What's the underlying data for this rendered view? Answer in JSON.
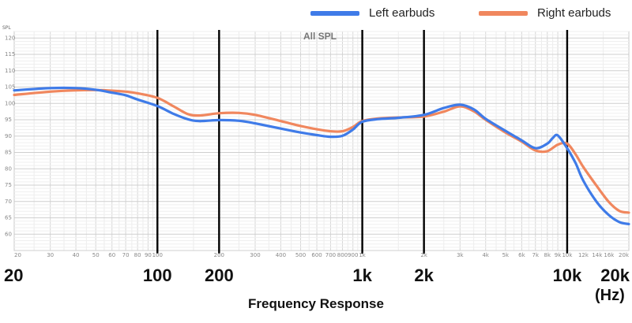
{
  "chart_data": {
    "type": "line",
    "title": "All SPL",
    "xlabel": "Frequency Response",
    "x_unit": "(Hz)",
    "ylabel": "SPL",
    "xscale": "log",
    "xlim": [
      20,
      20000
    ],
    "ylim": [
      55,
      122
    ],
    "grid": true,
    "legend_position": "top-right",
    "y_ticks": [
      120,
      115,
      110,
      105,
      100,
      95,
      90,
      85,
      80,
      75,
      70,
      65,
      60
    ],
    "minor_x_ticks": [
      {
        "v": 20,
        "label": "20"
      },
      {
        "v": 30,
        "label": "30"
      },
      {
        "v": 40,
        "label": "40"
      },
      {
        "v": 50,
        "label": "50"
      },
      {
        "v": 60,
        "label": "60"
      },
      {
        "v": 70,
        "label": "70"
      },
      {
        "v": 80,
        "label": "80"
      },
      {
        "v": 90,
        "label": "90"
      },
      {
        "v": 100,
        "label": "100"
      },
      {
        "v": 200,
        "label": "200"
      },
      {
        "v": 300,
        "label": "300"
      },
      {
        "v": 400,
        "label": "400"
      },
      {
        "v": 500,
        "label": "500"
      },
      {
        "v": 600,
        "label": "600"
      },
      {
        "v": 700,
        "label": "700"
      },
      {
        "v": 800,
        "label": "800"
      },
      {
        "v": 900,
        "label": "900"
      },
      {
        "v": 1000,
        "label": "1k"
      },
      {
        "v": 2000,
        "label": "2k"
      },
      {
        "v": 3000,
        "label": "3k"
      },
      {
        "v": 4000,
        "label": "4k"
      },
      {
        "v": 5000,
        "label": "5k"
      },
      {
        "v": 6000,
        "label": "6k"
      },
      {
        "v": 7000,
        "label": "7k"
      },
      {
        "v": 8000,
        "label": "8k"
      },
      {
        "v": 9000,
        "label": "9k"
      },
      {
        "v": 10000,
        "label": "10k"
      },
      {
        "v": 12000,
        "label": "12k"
      },
      {
        "v": 14000,
        "label": "14k"
      },
      {
        "v": 16000,
        "label": "16k"
      },
      {
        "v": 20000,
        "label": "20k"
      }
    ],
    "major_x_ticks": [
      {
        "v": 20,
        "label": "20"
      },
      {
        "v": 100,
        "label": "100"
      },
      {
        "v": 200,
        "label": "200"
      },
      {
        "v": 1000,
        "label": "1k"
      },
      {
        "v": 2000,
        "label": "2k"
      },
      {
        "v": 10000,
        "label": "10k"
      },
      {
        "v": 20000,
        "label": "20k"
      }
    ],
    "vertical_lines": [
      100,
      200,
      1000,
      2000,
      10000
    ],
    "series": [
      {
        "name": "Left earbuds",
        "color": "#3f7be8",
        "x": [
          20,
          30,
          40,
          50,
          60,
          70,
          80,
          100,
          120,
          140,
          160,
          200,
          250,
          300,
          400,
          500,
          600,
          700,
          800,
          900,
          1000,
          1200,
          1500,
          2000,
          2500,
          3000,
          3500,
          4000,
          5000,
          6000,
          7000,
          8000,
          8500,
          9000,
          10000,
          11000,
          12000,
          14000,
          16000,
          18000,
          20000
        ],
        "y": [
          104.0,
          104.7,
          104.7,
          104.2,
          103.3,
          102.5,
          101.2,
          99.2,
          96.8,
          95.2,
          94.6,
          94.9,
          94.7,
          93.9,
          92.3,
          91.1,
          90.3,
          89.8,
          90.1,
          92.0,
          94.4,
          95.2,
          95.6,
          96.5,
          98.6,
          99.6,
          98.2,
          95.3,
          91.6,
          88.7,
          86.3,
          87.7,
          89.4,
          90.2,
          86.3,
          81.7,
          76.3,
          69.7,
          65.8,
          63.7,
          63.1
        ]
      },
      {
        "name": "Right earbuds",
        "color": "#f0875e",
        "x": [
          20,
          30,
          40,
          50,
          60,
          70,
          80,
          100,
          120,
          140,
          160,
          200,
          250,
          300,
          400,
          500,
          600,
          700,
          800,
          900,
          1000,
          1200,
          1500,
          2000,
          2500,
          3000,
          3500,
          4000,
          5000,
          6000,
          7000,
          8000,
          9000,
          10000,
          11000,
          12000,
          14000,
          16000,
          18000,
          20000
        ],
        "y": [
          102.6,
          103.6,
          104.0,
          104.1,
          103.9,
          103.6,
          103.1,
          101.7,
          99.1,
          96.8,
          96.3,
          97.0,
          97.1,
          96.5,
          94.6,
          93.1,
          92.1,
          91.5,
          91.5,
          92.8,
          94.6,
          95.4,
          95.7,
          96.0,
          97.5,
          99.1,
          97.6,
          95.0,
          91.1,
          88.3,
          85.6,
          85.4,
          87.4,
          87.7,
          84.4,
          80.5,
          74.6,
          69.8,
          67.1,
          66.6
        ]
      }
    ]
  }
}
